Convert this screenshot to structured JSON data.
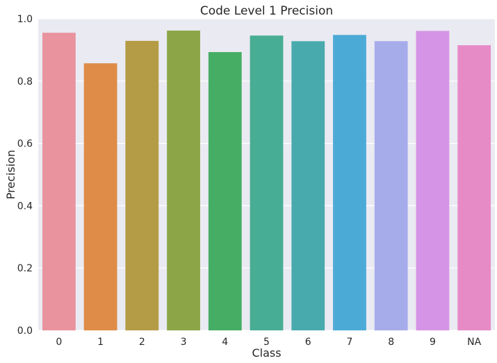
{
  "chart_data": {
    "type": "bar",
    "title": "Code Level 1 Precision",
    "xlabel": "Class",
    "ylabel": "Precision",
    "categories": [
      "0",
      "1",
      "2",
      "3",
      "4",
      "5",
      "6",
      "7",
      "8",
      "9",
      "NA"
    ],
    "values": [
      0.955,
      0.857,
      0.929,
      0.962,
      0.893,
      0.946,
      0.928,
      0.948,
      0.928,
      0.961,
      0.915
    ],
    "ylim": [
      0,
      1.0
    ],
    "yticks": [
      0.0,
      0.2,
      0.4,
      0.6,
      0.8,
      1.0
    ],
    "ytick_labels": [
      "0.0",
      "0.2",
      "0.4",
      "0.6",
      "0.8",
      "1.0"
    ],
    "colors": [
      "#e8939e",
      "#de8c47",
      "#b49b45",
      "#8ba547",
      "#46ad64",
      "#48ad95",
      "#49aaae",
      "#4caad6",
      "#a6abea",
      "#d594e5",
      "#e78bc6"
    ],
    "grid": true,
    "background": "#eaeaf2"
  }
}
